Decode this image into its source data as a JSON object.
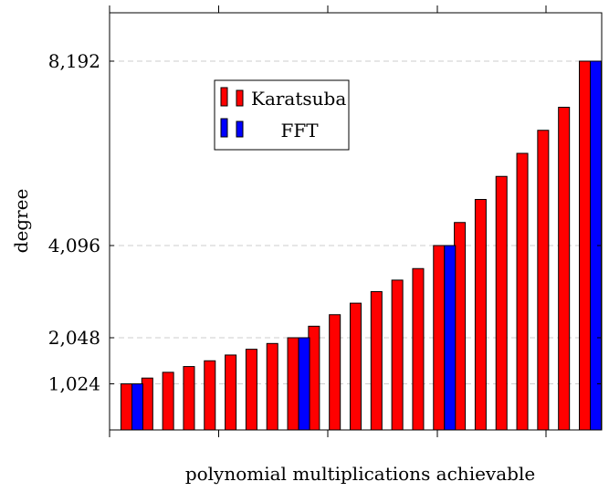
{
  "chart_data": {
    "type": "bar",
    "xlabel": "polynomial multiplications achievable",
    "ylabel": "degree",
    "yticks": [
      1024,
      2048,
      4096,
      8192
    ],
    "ytick_labels": [
      "1,024",
      "2,048",
      "4,096",
      "8,192"
    ],
    "ylim": [
      0,
      9150
    ],
    "grid": "horizontal dashed at y ticks",
    "legend_position": "upper-left inside",
    "series": [
      {
        "name": "Karatsuba",
        "color": "#ff0000",
        "values": [
          1024,
          1152,
          1280,
          1408,
          1536,
          1664,
          1792,
          1920,
          2048,
          2304,
          2560,
          2816,
          3072,
          3328,
          3584,
          4096,
          4608,
          5120,
          5632,
          6144,
          6656,
          7168,
          8192
        ]
      },
      {
        "name": "FFT",
        "color": "#0000ff",
        "values": [
          1024,
          null,
          null,
          null,
          null,
          null,
          null,
          null,
          2048,
          null,
          null,
          null,
          null,
          null,
          null,
          4096,
          null,
          null,
          null,
          null,
          null,
          null,
          8192
        ]
      }
    ]
  }
}
